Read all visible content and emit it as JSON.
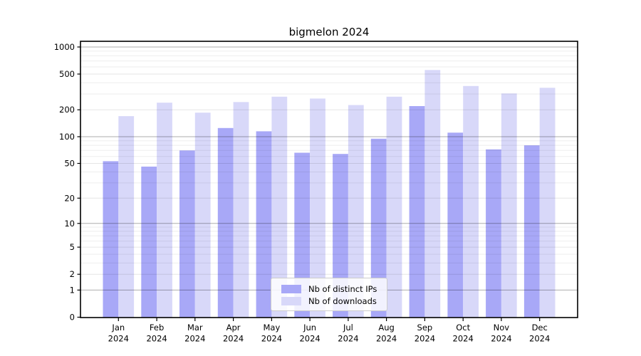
{
  "title": "bigmelon 2024",
  "chart_data": {
    "type": "bar",
    "title": "bigmelon 2024",
    "categories": [
      "Jan",
      "Feb",
      "Mar",
      "Apr",
      "May",
      "Jun",
      "Jul",
      "Aug",
      "Sep",
      "Oct",
      "Nov",
      "Dec"
    ],
    "x_tick_line2": "2024",
    "series": [
      {
        "name": "Nb of distinct IPs",
        "color": "#a8a8f7",
        "values": [
          53,
          46,
          70,
          125,
          115,
          66,
          64,
          95,
          220,
          111,
          72,
          80
        ]
      },
      {
        "name": "Nb of downloads",
        "color": "#d8d8f9",
        "values": [
          170,
          240,
          186,
          244,
          280,
          267,
          226,
          280,
          555,
          368,
          304,
          352
        ]
      }
    ],
    "yscale": "log1p",
    "ylim": [
      0,
      1000
    ],
    "yticks": [
      0,
      1,
      2,
      5,
      10,
      20,
      50,
      100,
      200,
      500,
      1000
    ],
    "minor_yticks": [
      3,
      4,
      6,
      7,
      8,
      9,
      30,
      40,
      60,
      70,
      80,
      90,
      300,
      400,
      600,
      700,
      800,
      900
    ],
    "decade_grid_values": [
      1,
      10,
      100,
      1000
    ],
    "grid": true,
    "legend_position": "lower center",
    "xlabel": "",
    "ylabel": ""
  },
  "colors": {
    "background": "#ffffff",
    "axis": "#000000",
    "grid_decade": "rgba(0,0,0,0.32)",
    "grid_labeled": "rgba(0,0,0,0.10)",
    "grid_minor": "rgba(0,0,0,0.07)"
  }
}
